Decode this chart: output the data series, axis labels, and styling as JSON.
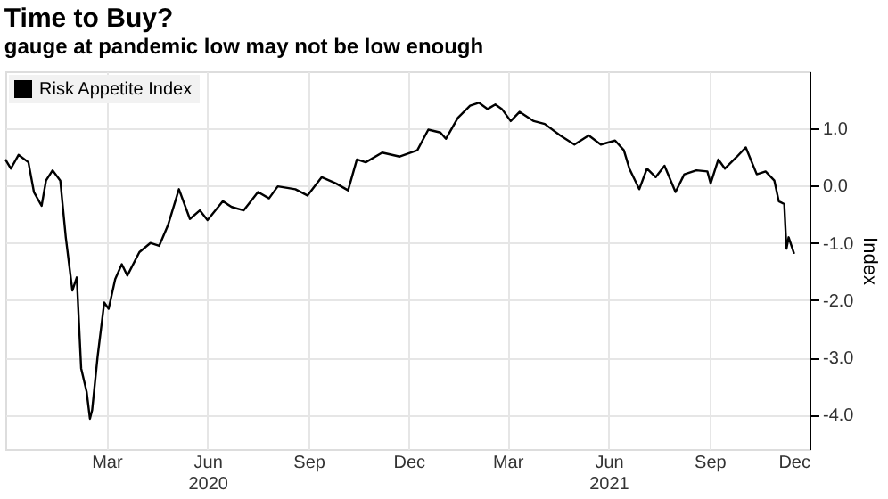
{
  "chart_data": {
    "type": "line",
    "title": "Time to Buy?",
    "subtitle": "gauge at pandemic low may not be low enough",
    "ylabel": "Index",
    "x": [
      "2019-11-30",
      "2019-12-05",
      "2019-12-12",
      "2019-12-21",
      "2019-12-26",
      "2020-01-02",
      "2020-01-06",
      "2020-01-12",
      "2020-01-19",
      "2020-01-24",
      "2020-01-30",
      "2020-02-03",
      "2020-02-07",
      "2020-02-12",
      "2020-02-15",
      "2020-02-17",
      "2020-02-22",
      "2020-02-28",
      "2020-03-03",
      "2020-03-09",
      "2020-03-15",
      "2020-03-20",
      "2020-03-31",
      "2020-04-10",
      "2020-04-18",
      "2020-04-26",
      "2020-05-06",
      "2020-05-16",
      "2020-05-25",
      "2020-06-01",
      "2020-06-15",
      "2020-06-23",
      "2020-07-04",
      "2020-07-17",
      "2020-07-27",
      "2020-08-04",
      "2020-08-20",
      "2020-08-31",
      "2020-09-13",
      "2020-09-26",
      "2020-10-07",
      "2020-10-15",
      "2020-10-23",
      "2020-11-07",
      "2020-11-23",
      "2020-12-09",
      "2020-12-19",
      "2020-12-30",
      "2021-01-04",
      "2021-01-15",
      "2021-01-26",
      "2021-02-03",
      "2021-02-11",
      "2021-02-18",
      "2021-02-24",
      "2021-03-04",
      "2021-03-12",
      "2021-03-25",
      "2021-04-04",
      "2021-04-18",
      "2021-05-01",
      "2021-05-14",
      "2021-05-25",
      "2021-06-07",
      "2021-06-15",
      "2021-06-20",
      "2021-06-29",
      "2021-07-06",
      "2021-07-14",
      "2021-07-22",
      "2021-08-01",
      "2021-08-09",
      "2021-08-20",
      "2021-08-30",
      "2021-09-02",
      "2021-09-09",
      "2021-09-15",
      "2021-09-26",
      "2021-10-04",
      "2021-10-14",
      "2021-10-22",
      "2021-10-30",
      "2021-11-03",
      "2021-11-08",
      "2021-11-10",
      "2021-11-12",
      "2021-11-17"
    ],
    "series": [
      {
        "name": "Risk Appetite Index",
        "color": "#000000",
        "values": [
          0.46,
          0.3,
          0.54,
          0.41,
          -0.11,
          -0.35,
          0.09,
          0.27,
          0.09,
          -0.9,
          -1.83,
          -1.6,
          -3.19,
          -3.6,
          -4.07,
          -3.92,
          -2.98,
          -2.04,
          -2.15,
          -1.63,
          -1.37,
          -1.57,
          -1.16,
          -1.0,
          -1.05,
          -0.69,
          -0.06,
          -0.58,
          -0.43,
          -0.6,
          -0.27,
          -0.37,
          -0.43,
          -0.11,
          -0.22,
          -0.01,
          -0.06,
          -0.17,
          0.15,
          0.04,
          -0.08,
          0.46,
          0.41,
          0.58,
          0.51,
          0.62,
          0.98,
          0.93,
          0.82,
          1.19,
          1.4,
          1.45,
          1.34,
          1.42,
          1.34,
          1.13,
          1.29,
          1.13,
          1.08,
          0.88,
          0.72,
          0.88,
          0.72,
          0.79,
          0.62,
          0.3,
          -0.06,
          0.3,
          0.15,
          0.35,
          -0.11,
          0.2,
          0.27,
          0.25,
          0.04,
          0.46,
          0.3,
          0.51,
          0.67,
          0.2,
          0.25,
          0.09,
          -0.27,
          -0.32,
          -1.1,
          -0.9,
          -1.19
        ]
      }
    ],
    "xlim": [
      "2019-11-30",
      "2021-12-01"
    ],
    "xticks": [
      {
        "value": "2020-03-01",
        "label": "Mar"
      },
      {
        "value": "2020-06-01",
        "label": "Jun 2020"
      },
      {
        "value": "2020-09-01",
        "label": "Sep"
      },
      {
        "value": "2020-12-01",
        "label": "Dec"
      },
      {
        "value": "2021-03-01",
        "label": "Mar"
      },
      {
        "value": "2021-06-01",
        "label": "Jun 2021"
      },
      {
        "value": "2021-09-01",
        "label": "Sep"
      },
      {
        "value": "2021-12-01",
        "label": "Dec"
      }
    ],
    "ylim": [
      -4.6,
      2.0
    ],
    "yticks": [
      {
        "value": -4,
        "label": "-4.0"
      },
      {
        "value": -3,
        "label": "-3.0"
      },
      {
        "value": -2,
        "label": "-2.0"
      },
      {
        "value": -1,
        "label": "-1.0"
      },
      {
        "value": 0,
        "label": "0.0"
      },
      {
        "value": 1,
        "label": "1.0"
      }
    ],
    "grid": true,
    "legend": "top left",
    "line_style": "solid",
    "marker": "none"
  }
}
